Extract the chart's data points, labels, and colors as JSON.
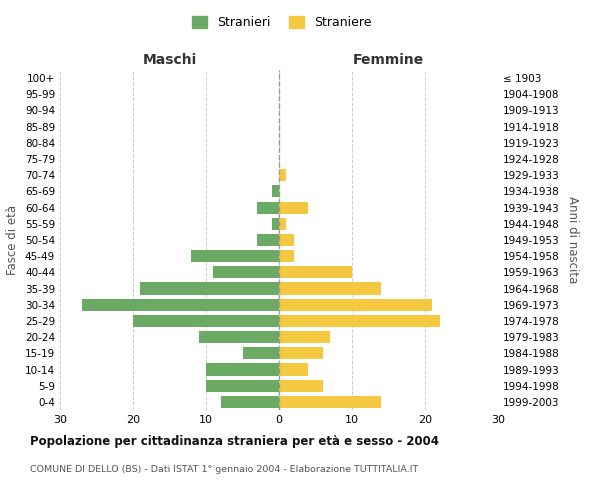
{
  "age_groups": [
    "0-4",
    "5-9",
    "10-14",
    "15-19",
    "20-24",
    "25-29",
    "30-34",
    "35-39",
    "40-44",
    "45-49",
    "50-54",
    "55-59",
    "60-64",
    "65-69",
    "70-74",
    "75-79",
    "80-84",
    "85-89",
    "90-94",
    "95-99",
    "100+"
  ],
  "birth_years": [
    "1999-2003",
    "1994-1998",
    "1989-1993",
    "1984-1988",
    "1979-1983",
    "1974-1978",
    "1969-1973",
    "1964-1968",
    "1959-1963",
    "1954-1958",
    "1949-1953",
    "1944-1948",
    "1939-1943",
    "1934-1938",
    "1929-1933",
    "1924-1928",
    "1919-1923",
    "1914-1918",
    "1909-1913",
    "1904-1908",
    "≤ 1903"
  ],
  "males": [
    8,
    10,
    10,
    5,
    11,
    20,
    27,
    19,
    9,
    12,
    3,
    1,
    3,
    1,
    0,
    0,
    0,
    0,
    0,
    0,
    0
  ],
  "females": [
    14,
    6,
    4,
    6,
    7,
    22,
    21,
    14,
    10,
    2,
    2,
    1,
    4,
    0,
    1,
    0,
    0,
    0,
    0,
    0,
    0
  ],
  "male_color": "#6aaa64",
  "female_color": "#f5c842",
  "title": "Popolazione per cittadinanza straniera per età e sesso - 2004",
  "subtitle": "COMUNE DI DELLO (BS) - Dati ISTAT 1° gennaio 2004 - Elaborazione TUTTITALIA.IT",
  "xlabel_left": "Maschi",
  "xlabel_right": "Femmine",
  "ylabel_left": "Fasce di età",
  "ylabel_right": "Anni di nascita",
  "legend_stranieri": "Stranieri",
  "legend_straniere": "Straniere",
  "xlim": 30,
  "background_color": "#ffffff",
  "grid_color": "#cccccc"
}
